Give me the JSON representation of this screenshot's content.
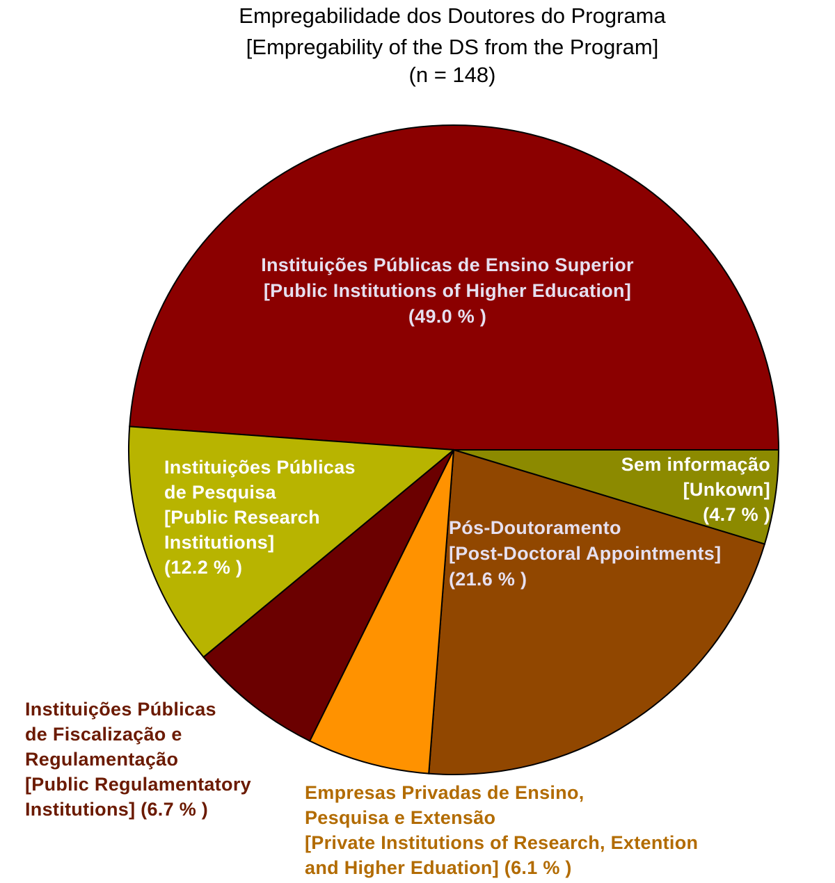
{
  "chart_data": {
    "type": "pie",
    "title_lines": [
      "Empregabilidade dos Doutores do Programa",
      "[Empregability of the DS from the Program]",
      "(n = 148)"
    ],
    "slices": [
      {
        "value": 49.0,
        "color": "#8b0000",
        "label_color": "#e6e0f0",
        "label_lines": [
          "Instituições Públicas de Ensino Superior",
          "[Public Institutions of Higher Education]",
          "(49.0 % )"
        ]
      },
      {
        "value": 4.7,
        "color": "#8c8a00",
        "label_color": "#ffffff",
        "label_lines": [
          "Sem informação",
          "[Unkown]",
          "(4.7 % )"
        ]
      },
      {
        "value": 21.6,
        "color": "#914700",
        "label_color": "#e6e0f0",
        "label_lines": [
          "Pós-Doutoramento",
          "[Post-Doctoral Appointments]",
          "(21.6 % )"
        ]
      },
      {
        "value": 6.1,
        "color": "#ff9200",
        "label_color": "#b26b00",
        "label_lines": [
          "Empresas Privadas de Ensino,",
          "Pesquisa e Extensão",
          "[Private Institutions of Research, Extention",
          "and Higher Eduation] (6.1 % )"
        ]
      },
      {
        "value": 6.7,
        "color": "#6b0000",
        "label_color": "#6b1a00",
        "label_lines": [
          "Instituições Públicas",
          "de Fiscalização e",
          "Regulamentação",
          "[Public Regulamentatory",
          "Institutions] (6.7 % )"
        ]
      },
      {
        "value": 12.2,
        "color": "#b8b400",
        "label_color": "#ffffff",
        "label_lines": [
          "Instituições Públicas",
          "de Pesquisa",
          "[Public Research",
          "Institutions]",
          "(12.2 % )"
        ]
      }
    ]
  }
}
